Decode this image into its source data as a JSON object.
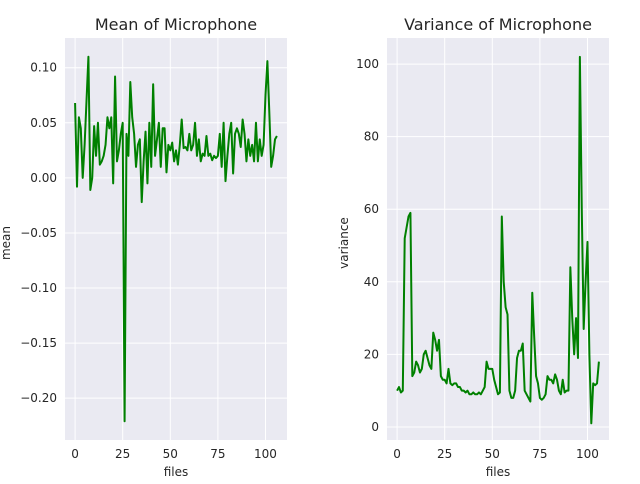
{
  "chart_data": [
    {
      "type": "line",
      "title": "Mean of Microphone",
      "x_label": "files",
      "y_label": "mean",
      "grid": true,
      "xlim": [
        -5.3,
        111.3
      ],
      "ylim": [
        -0.238,
        0.127
      ],
      "xticks": [
        0,
        25,
        50,
        75,
        100
      ],
      "yticks": [
        {
          "value": -0.2,
          "label": "−0.20"
        },
        {
          "value": -0.15,
          "label": "−0.15"
        },
        {
          "value": -0.1,
          "label": "−0.10"
        },
        {
          "value": -0.05,
          "label": "−0.05"
        },
        {
          "value": 0,
          "label": "0.00"
        },
        {
          "value": 0.05,
          "label": "0.05"
        },
        {
          "value": 0.1,
          "label": "0.10"
        }
      ],
      "x": [
        0,
        1,
        2,
        3,
        4,
        5,
        6,
        7,
        8,
        9,
        10,
        11,
        12,
        13,
        14,
        15,
        16,
        17,
        18,
        19,
        20,
        21,
        22,
        23,
        24,
        25,
        26,
        27,
        28,
        29,
        30,
        31,
        32,
        33,
        34,
        35,
        36,
        37,
        38,
        39,
        40,
        41,
        42,
        43,
        44,
        45,
        46,
        47,
        48,
        49,
        50,
        51,
        52,
        53,
        54,
        55,
        56,
        57,
        58,
        59,
        60,
        61,
        62,
        63,
        64,
        65,
        66,
        67,
        68,
        69,
        70,
        71,
        72,
        73,
        74,
        75,
        76,
        77,
        78,
        79,
        80,
        81,
        82,
        83,
        84,
        85,
        86,
        87,
        88,
        89,
        90,
        91,
        92,
        93,
        94,
        95,
        96,
        97,
        98,
        99,
        100,
        101,
        102,
        103,
        104,
        105,
        106
      ],
      "series": [
        {
          "color": "#008000",
          "values": [
            0.068,
            -0.008,
            0.055,
            0.045,
            0.0,
            0.03,
            0.07,
            0.11,
            -0.011,
            0.0,
            0.047,
            0.02,
            0.05,
            0.012,
            0.015,
            0.02,
            0.03,
            0.055,
            0.045,
            0.055,
            -0.005,
            0.092,
            0.015,
            0.025,
            0.04,
            0.05,
            -0.221,
            0.04,
            0.02,
            0.087,
            0.055,
            0.04,
            0.01,
            0.03,
            0.035,
            -0.022,
            0.015,
            0.042,
            -0.005,
            0.05,
            0.01,
            0.085,
            0.02,
            0.035,
            0.05,
            0.01,
            0.045,
            0.045,
            0.005,
            0.03,
            0.025,
            0.032,
            0.015,
            0.025,
            0.012,
            0.03,
            0.053,
            0.027,
            0.028,
            0.025,
            0.04,
            0.025,
            0.03,
            0.05,
            0.02,
            0.035,
            0.015,
            0.022,
            0.02,
            0.038,
            0.02,
            0.022,
            0.016,
            0.02,
            0.018,
            0.02,
            0.04,
            0.01,
            0.05,
            -0.003,
            0.02,
            0.04,
            0.05,
            0.004,
            0.04,
            0.045,
            0.04,
            0.028,
            0.053,
            0.04,
            0.015,
            0.035,
            0.02,
            0.03,
            0.015,
            0.05,
            0.015,
            0.035,
            0.02,
            0.03,
            0.075,
            0.106,
            0.06,
            0.01,
            0.02,
            0.035,
            0.038
          ]
        }
      ]
    },
    {
      "type": "line",
      "title": "Variance of Microphone",
      "x_label": "files",
      "y_label": "variance",
      "grid": true,
      "xlim": [
        -5.3,
        111.3
      ],
      "ylim": [
        -3.6,
        107.2
      ],
      "xticks": [
        0,
        25,
        50,
        75,
        100
      ],
      "yticks": [
        0,
        20,
        40,
        60,
        80,
        100
      ],
      "x": [
        0,
        1,
        2,
        3,
        4,
        5,
        6,
        7,
        8,
        9,
        10,
        11,
        12,
        13,
        14,
        15,
        16,
        17,
        18,
        19,
        20,
        21,
        22,
        23,
        24,
        25,
        26,
        27,
        28,
        29,
        30,
        31,
        32,
        33,
        34,
        35,
        36,
        37,
        38,
        39,
        40,
        41,
        42,
        43,
        44,
        45,
        46,
        47,
        48,
        49,
        50,
        51,
        52,
        53,
        54,
        55,
        56,
        57,
        58,
        59,
        60,
        61,
        62,
        63,
        64,
        65,
        66,
        67,
        68,
        69,
        70,
        71,
        72,
        73,
        74,
        75,
        76,
        77,
        78,
        79,
        80,
        81,
        82,
        83,
        84,
        85,
        86,
        87,
        88,
        89,
        90,
        91,
        92,
        93,
        94,
        95,
        96,
        97,
        98,
        99,
        100,
        101,
        102,
        103,
        104,
        105,
        106
      ],
      "series": [
        {
          "color": "#008000",
          "values": [
            10,
            11,
            9.5,
            10,
            52,
            55,
            58,
            59,
            14,
            15,
            18,
            17,
            15,
            16,
            20,
            21,
            19,
            17,
            16,
            26,
            24,
            21,
            24,
            14,
            13,
            13,
            12,
            16,
            12,
            11.5,
            12,
            12,
            11,
            11,
            10,
            10,
            9.5,
            10,
            9,
            9,
            9.5,
            9,
            9,
            9.5,
            9,
            10,
            11,
            18,
            16,
            16,
            16,
            13,
            11,
            9,
            9.5,
            58,
            40,
            33,
            31,
            10,
            8,
            8,
            10,
            19,
            21,
            21,
            23,
            10,
            9,
            8,
            7,
            37,
            25,
            14,
            12,
            8,
            7.5,
            8,
            9,
            14,
            13,
            13,
            12,
            14.5,
            13,
            10,
            9,
            13,
            9.5,
            10,
            10,
            44,
            30,
            20,
            30,
            19,
            102,
            60,
            27,
            40,
            51,
            20,
            1,
            12,
            11.5,
            12,
            18
          ]
        }
      ]
    }
  ]
}
